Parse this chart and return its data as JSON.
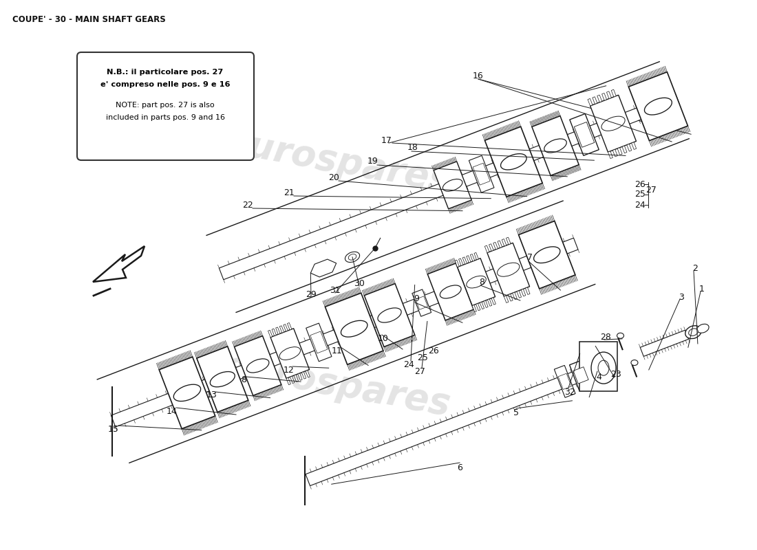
{
  "title": "COUPE' - 30 - MAIN SHAFT GEARS",
  "title_fontsize": 8.5,
  "title_fontweight": "bold",
  "background_color": "#ffffff",
  "note_line1": "N.B.: il particolare pos. 27",
  "note_line2": "e' compreso nelle pos. 9 e 16",
  "note_line3": "NOTE: part pos. 27 is also",
  "note_line4": "included in parts pos. 9 and 16",
  "watermark": "eurospares",
  "wm_color": "#bbbbbb",
  "wm_alpha": 0.4,
  "lc": "#1a1a1a"
}
